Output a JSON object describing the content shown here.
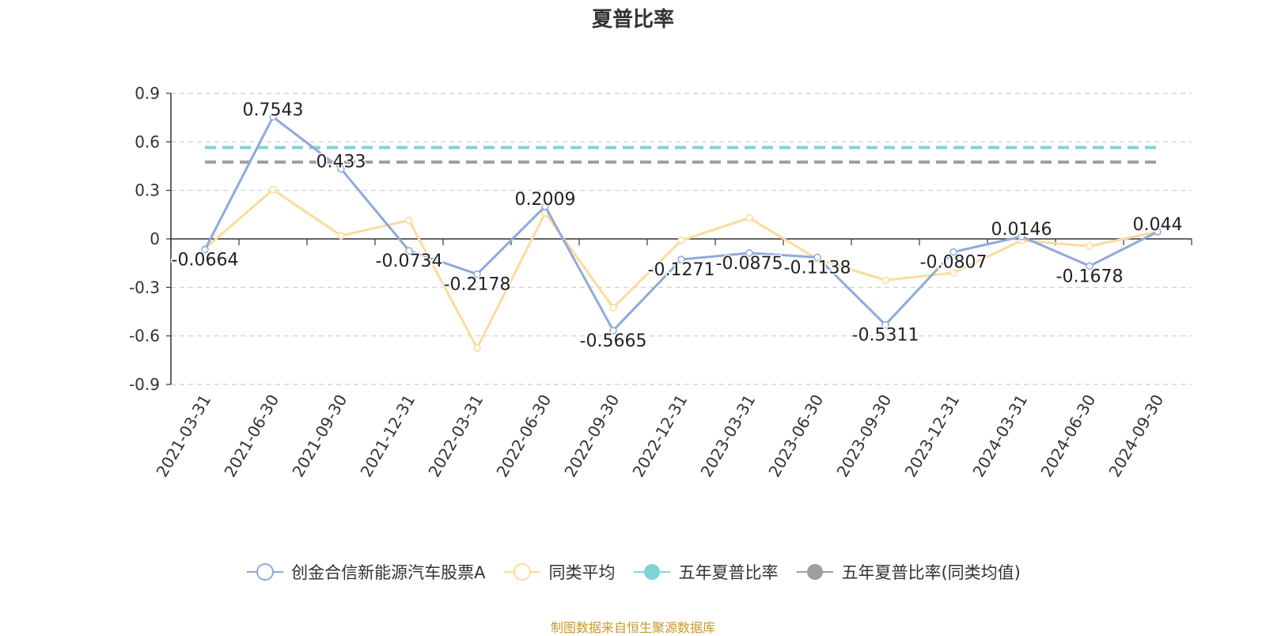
{
  "chart_data": {
    "type": "line",
    "title": "夏普比率",
    "categories": [
      "2021-03-31",
      "2021-06-30",
      "2021-09-30",
      "2021-12-31",
      "2022-03-31",
      "2022-06-30",
      "2022-09-30",
      "2022-12-31",
      "2023-03-31",
      "2023-06-30",
      "2023-09-30",
      "2023-12-31",
      "2024-03-31",
      "2024-06-30",
      "2024-09-30"
    ],
    "ylim": [
      -0.9,
      0.9
    ],
    "yticks": [
      "0.9",
      "0.6",
      "0.3",
      "0",
      "-0.3",
      "-0.6",
      "-0.9"
    ],
    "ytick_values": [
      0.9,
      0.6,
      0.3,
      0,
      -0.3,
      -0.6,
      -0.9
    ],
    "grid": true,
    "legend_position": "bottom",
    "series": [
      {
        "name": "创金合信新能源汽车股票A",
        "color": "#8eaad9",
        "marker": "hollow-circle",
        "values": [
          -0.0664,
          0.7543,
          0.433,
          -0.0734,
          -0.2178,
          0.2009,
          -0.5665,
          -0.1271,
          -0.0875,
          -0.1138,
          -0.5311,
          -0.0807,
          0.0146,
          -0.1678,
          0.044
        ],
        "labels": [
          "-0.0664",
          "0.7543",
          "0.433",
          "-0.0734",
          "-0.2178",
          "0.2009",
          "-0.5665",
          "-0.1271",
          "-0.0875",
          "-0.1138",
          "-0.5311",
          "-0.0807",
          "0.0146",
          "-0.1678",
          "0.044"
        ]
      },
      {
        "name": "同类平均",
        "color": "#fcdb9a",
        "marker": "hollow-circle",
        "values": [
          -0.06,
          0.305,
          0.02,
          0.115,
          -0.675,
          0.16,
          -0.425,
          -0.01,
          0.13,
          -0.125,
          -0.255,
          -0.21,
          -0.01,
          -0.045,
          0.045
        ]
      },
      {
        "name": "五年夏普比率",
        "color": "#7fd4d4",
        "marker": "filled-circle",
        "dashed": true,
        "value": 0.565
      },
      {
        "name": "五年夏普比率(同类均值)",
        "color": "#9e9e9e",
        "marker": "filled-circle",
        "dashed": true,
        "value": 0.475
      }
    ],
    "source": "制图数据来自恒生聚源数据库"
  }
}
